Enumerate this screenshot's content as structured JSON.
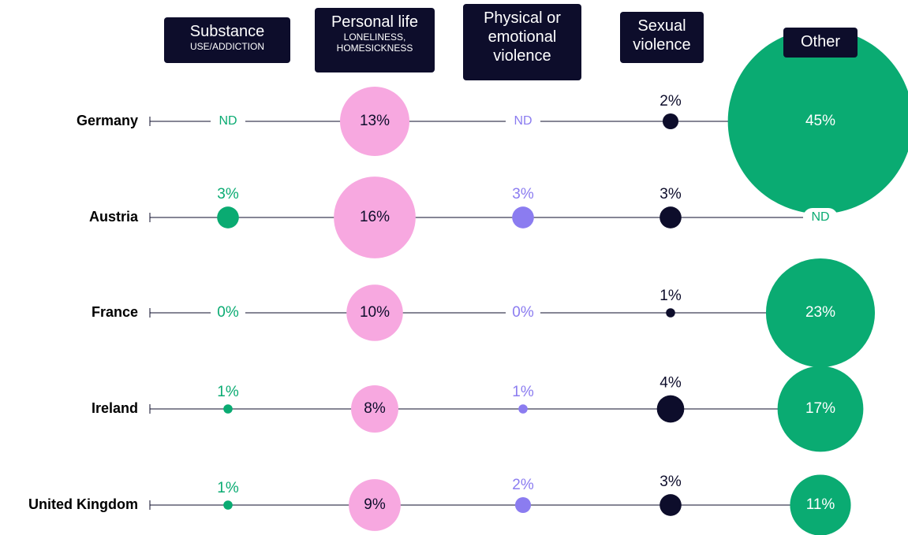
{
  "chart_data": {
    "type": "bubble",
    "categories": [
      "Germany",
      "Austria",
      "France",
      "Ireland",
      "United Kingdom"
    ],
    "series": [
      {
        "name": "Substance",
        "subtitle": "USE/ADDICTION",
        "color": "#0aab72",
        "values": [
          null,
          3,
          0,
          1,
          1
        ],
        "value_labels": [
          "ND",
          "3%",
          "0%",
          "1%",
          "1%"
        ]
      },
      {
        "name": "Personal life",
        "subtitle": "LONELINESS, HOMESICKNESS",
        "color": "#f7a8e0",
        "values": [
          13,
          16,
          10,
          8,
          9
        ],
        "value_labels": [
          "13%",
          "16%",
          "10%",
          "8%",
          "9%"
        ]
      },
      {
        "name": "Physical or emotional violence",
        "color": "#8b7cf0",
        "values": [
          null,
          3,
          0,
          1,
          2
        ],
        "value_labels": [
          "ND",
          "3%",
          "0%",
          "1%",
          "2%"
        ]
      },
      {
        "name": "Sexual violence",
        "color": "#0d0d2b",
        "values": [
          2,
          3,
          1,
          4,
          3
        ],
        "value_labels": [
          "2%",
          "3%",
          "1%",
          "4%",
          "3%"
        ]
      },
      {
        "name": "Other",
        "color": "#0aab72",
        "values": [
          45,
          null,
          23,
          17,
          11
        ],
        "value_labels": [
          "45%",
          "ND",
          "23%",
          "17%",
          "11%"
        ]
      }
    ]
  }
}
